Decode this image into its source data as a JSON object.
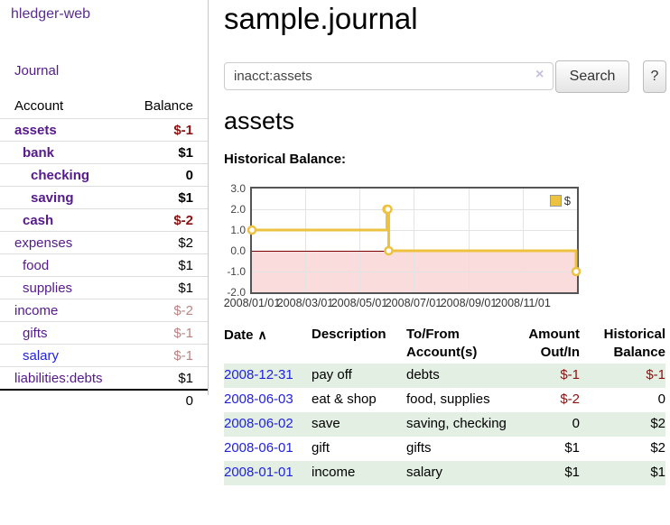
{
  "sidebar": {
    "app_title": "hledger-web",
    "journal_link": "Journal",
    "accounts_table": {
      "col_account": "Account",
      "col_balance": "Balance",
      "rows": [
        {
          "name": "assets",
          "indent": 0,
          "bold": true,
          "balance": "$-1",
          "neg": "strong"
        },
        {
          "name": "bank",
          "indent": 1,
          "bold": true,
          "balance": "$1",
          "neg": "none"
        },
        {
          "name": "checking",
          "indent": 2,
          "bold": true,
          "balance": "0",
          "neg": "none"
        },
        {
          "name": "saving",
          "indent": 2,
          "bold": true,
          "balance": "$1",
          "neg": "none"
        },
        {
          "name": "cash",
          "indent": 1,
          "bold": true,
          "balance": "$-2",
          "neg": "strong"
        },
        {
          "name": "expenses",
          "indent": 0,
          "bold": false,
          "balance": "$2",
          "neg": "none"
        },
        {
          "name": "food",
          "indent": 1,
          "bold": false,
          "balance": "$1",
          "neg": "none"
        },
        {
          "name": "supplies",
          "indent": 1,
          "bold": false,
          "balance": "$1",
          "neg": "none"
        },
        {
          "name": "income",
          "indent": 0,
          "bold": false,
          "balance": "$-2",
          "neg": "soft"
        },
        {
          "name": "gifts",
          "indent": 1,
          "bold": false,
          "balance": "$-1",
          "neg": "soft"
        },
        {
          "name": "salary",
          "indent": 1,
          "bold": false,
          "balance": "$-1",
          "neg": "soft",
          "link": "blue"
        },
        {
          "name": "liabilities:debts",
          "indent": 0,
          "bold": false,
          "balance": "$1",
          "neg": "none"
        }
      ],
      "total": "0"
    }
  },
  "header": {
    "title": "sample.journal"
  },
  "search": {
    "query": "inacct:assets",
    "clear_icon": "×",
    "button_label": "Search",
    "help_label": "?"
  },
  "account_page": {
    "heading": "assets",
    "chart_title": "Historical Balance:"
  },
  "chart_data": {
    "type": "line",
    "title": "Historical Balance",
    "steps": true,
    "xlim": [
      "2008-01-01",
      "2009-01-01"
    ],
    "ylim": [
      -2.0,
      3.0
    ],
    "y_ticks": [
      3.0,
      2.0,
      1.0,
      0.0,
      -1.0,
      -2.0
    ],
    "x_ticks": [
      "2008/01/01",
      "2008/03/01",
      "2008/05/01",
      "2008/07/01",
      "2008/09/01",
      "2008/11/01"
    ],
    "legend": [
      {
        "label": "$",
        "color": "#edc240"
      }
    ],
    "series": [
      {
        "name": "$",
        "color": "#edc240",
        "marker_fill": "#ffffff",
        "points": [
          {
            "x": "2008-01-01",
            "y": 1
          },
          {
            "x": "2008-06-01",
            "y": 2
          },
          {
            "x": "2008-06-02",
            "y": 2
          },
          {
            "x": "2008-06-03",
            "y": 0
          },
          {
            "x": "2008-12-31",
            "y": -1
          }
        ]
      }
    ],
    "negative_region_color": "#fbdcdc",
    "zero_line_color": "#7b0000",
    "grid": true,
    "legend_position": "top-right"
  },
  "transactions": {
    "sort_icon": "∧",
    "headers": [
      {
        "line1": "Date",
        "line2": ""
      },
      {
        "line1": "Description",
        "line2": ""
      },
      {
        "line1": "To/From",
        "line2": "Account(s)"
      },
      {
        "line1": "Amount",
        "line2": "Out/In"
      },
      {
        "line1": "Historical",
        "line2": "Balance"
      }
    ],
    "rows": [
      {
        "date": "2008-12-31",
        "description": "pay off",
        "accounts": "debts",
        "amount": "$-1",
        "amount_neg": true,
        "balance": "$-1",
        "balance_neg": true
      },
      {
        "date": "2008-06-03",
        "description": "eat & shop",
        "accounts": "food, supplies",
        "amount": "$-2",
        "amount_neg": true,
        "balance": "0",
        "balance_neg": false
      },
      {
        "date": "2008-06-02",
        "description": "save",
        "accounts": "saving, checking",
        "amount": "0",
        "amount_neg": false,
        "balance": "$2",
        "balance_neg": false
      },
      {
        "date": "2008-06-01",
        "description": "gift",
        "accounts": "gifts",
        "amount": "$1",
        "amount_neg": false,
        "balance": "$2",
        "balance_neg": false
      },
      {
        "date": "2008-01-01",
        "description": "income",
        "accounts": "salary",
        "amount": "$1",
        "amount_neg": false,
        "balance": "$1",
        "balance_neg": false
      }
    ]
  },
  "colors": {
    "purple_link": "#551a8b",
    "blue_link": "#2222dd",
    "negative_strong": "#8b1212",
    "negative_soft": "#bc8383",
    "row_stripe_green": "#e2efe2",
    "chart_line": "#edc240"
  }
}
